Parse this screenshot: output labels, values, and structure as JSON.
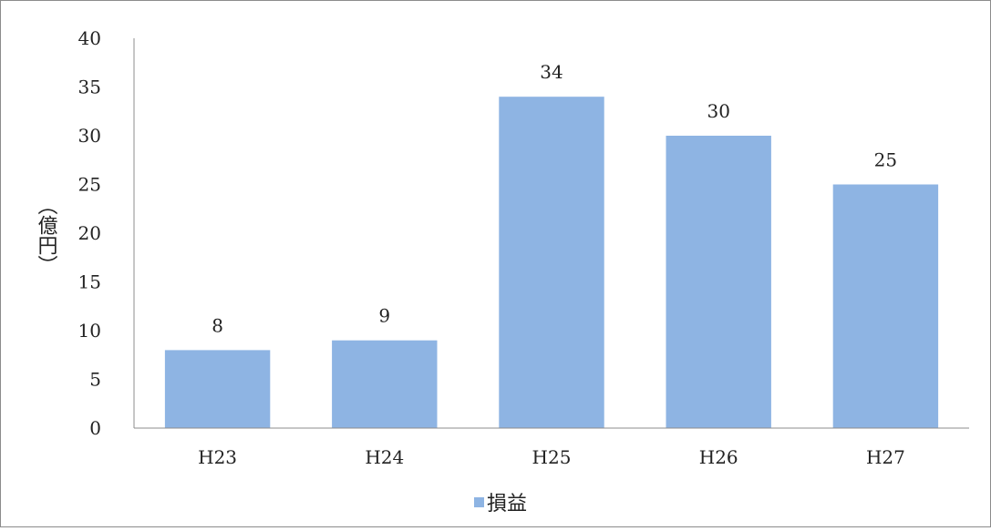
{
  "chart_data": {
    "type": "bar",
    "title": "",
    "categories": [
      "H23",
      "H24",
      "H25",
      "H26",
      "H27"
    ],
    "series": [
      {
        "name": "損益",
        "values": [
          8,
          9,
          34,
          30,
          25
        ]
      }
    ],
    "data_labels": [
      "8",
      "9",
      "34",
      "30",
      "25"
    ],
    "xlabel": "",
    "ylabel": "（億円）",
    "ylim": [
      0,
      40
    ],
    "y_ticks": [
      0,
      5,
      10,
      15,
      20,
      25,
      30,
      35,
      40
    ],
    "grid": false,
    "legend": {
      "position": "bottom",
      "entries": [
        "損益"
      ]
    },
    "colors": {
      "bar": "#8eb4e3",
      "axis": "#8c8c8c",
      "text": "#222222"
    }
  }
}
